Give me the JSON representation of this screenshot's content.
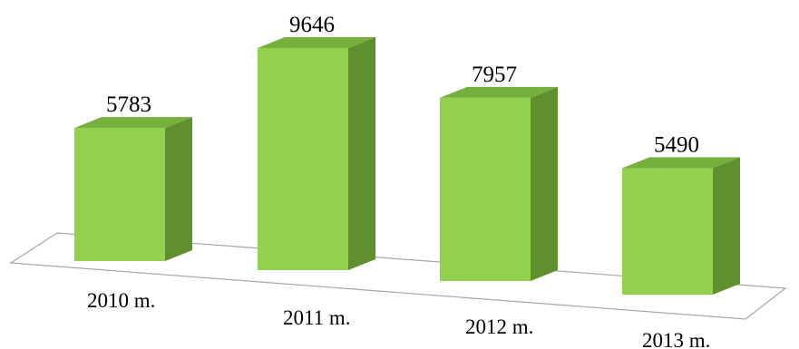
{
  "chart_data": {
    "type": "bar",
    "categories": [
      "2010 m.",
      "2011 m.",
      "2012 m.",
      "2013 m."
    ],
    "values": [
      5783,
      9646,
      7957,
      5490
    ],
    "title": "",
    "xlabel": "",
    "ylabel": "",
    "grid": false,
    "legend": "none",
    "bar_colors": {
      "front": "#92d050",
      "side": "#5f8f2e",
      "top": "#76b03c"
    }
  }
}
